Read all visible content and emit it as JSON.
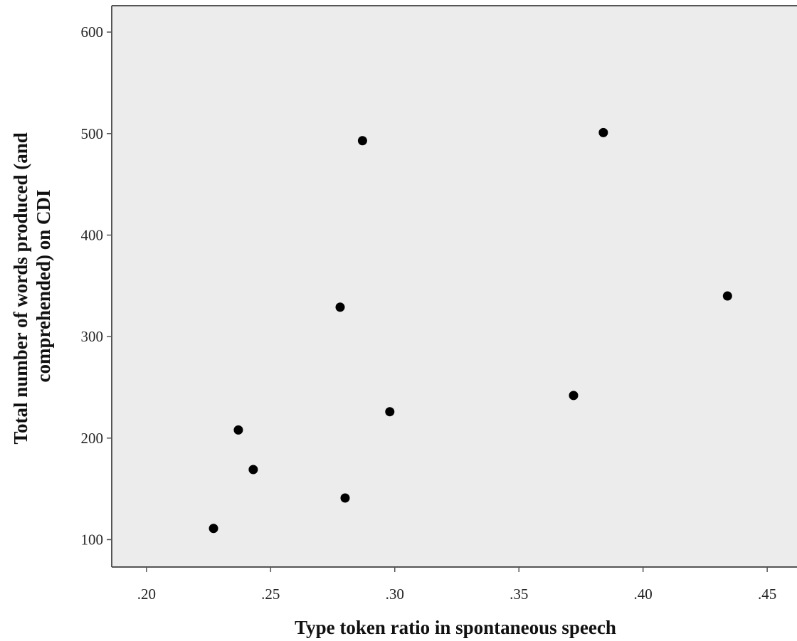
{
  "chart_data": {
    "type": "scatter",
    "xlabel": "Type token ratio in spontaneous speech",
    "ylabel_lines": [
      "Total number of words produced (and",
      "comprehended) on CDI"
    ],
    "xlim": [
      0.186,
      0.462
    ],
    "ylim": [
      73,
      626
    ],
    "x_ticks": [
      {
        "value": 0.2,
        "label": ".20"
      },
      {
        "value": 0.25,
        "label": ".25"
      },
      {
        "value": 0.3,
        "label": ".30"
      },
      {
        "value": 0.35,
        "label": ".35"
      },
      {
        "value": 0.4,
        "label": ".40"
      },
      {
        "value": 0.45,
        "label": ".45"
      }
    ],
    "y_ticks": [
      {
        "value": 100,
        "label": "100"
      },
      {
        "value": 200,
        "label": "200"
      },
      {
        "value": 300,
        "label": "300"
      },
      {
        "value": 400,
        "label": "400"
      },
      {
        "value": 500,
        "label": "500"
      },
      {
        "value": 600,
        "label": "600"
      }
    ],
    "grid": false,
    "colors": {
      "plot_background": "#ececec",
      "frame": "#555555",
      "point": "#000000"
    },
    "points": [
      {
        "x": 0.227,
        "y": 111
      },
      {
        "x": 0.237,
        "y": 208
      },
      {
        "x": 0.243,
        "y": 169
      },
      {
        "x": 0.278,
        "y": 329
      },
      {
        "x": 0.28,
        "y": 141
      },
      {
        "x": 0.287,
        "y": 493
      },
      {
        "x": 0.298,
        "y": 226
      },
      {
        "x": 0.372,
        "y": 242
      },
      {
        "x": 0.384,
        "y": 501
      },
      {
        "x": 0.434,
        "y": 340
      }
    ]
  }
}
